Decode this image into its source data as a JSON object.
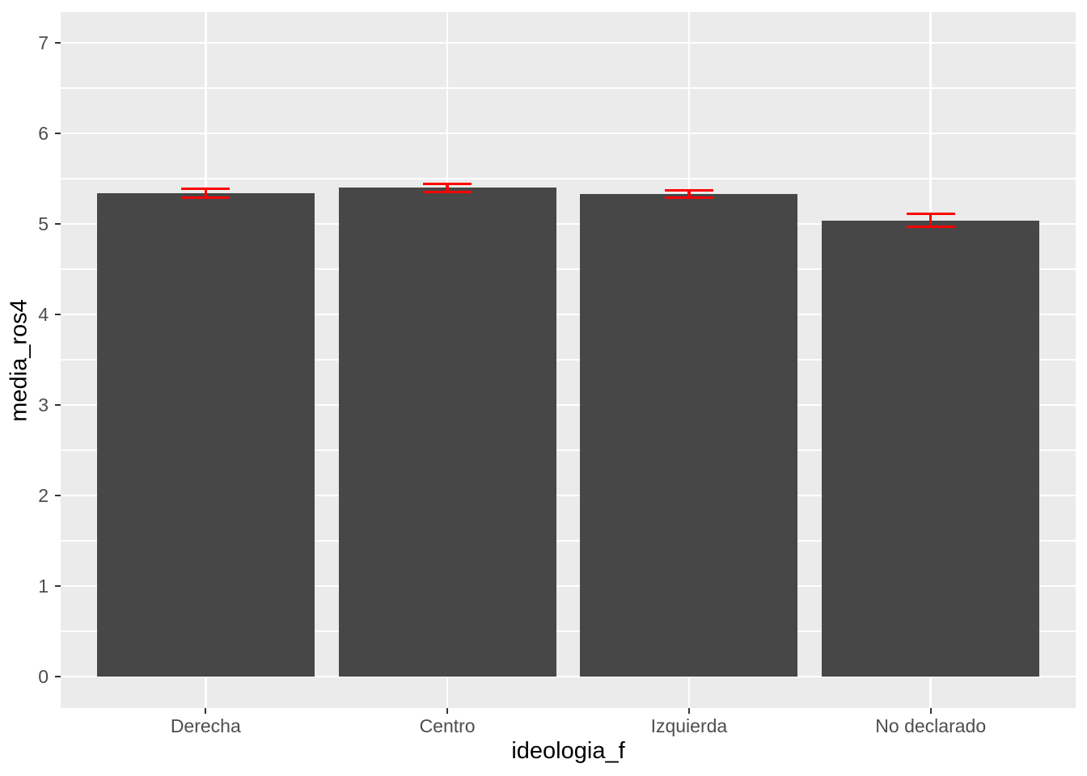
{
  "chart_data": {
    "type": "bar",
    "title": "",
    "xlabel": "ideologia_f",
    "ylabel": "media_ros4",
    "categories": [
      "Derecha",
      "Centro",
      "Izquierda",
      "No declarado"
    ],
    "series": [
      {
        "name": "media_ros4",
        "values": [
          5.34,
          5.4,
          5.33,
          5.04
        ]
      }
    ],
    "error_bars": {
      "low": [
        5.29,
        5.35,
        5.29,
        4.97
      ],
      "high": [
        5.39,
        5.44,
        5.37,
        5.11
      ]
    },
    "y_ticks": [
      0,
      1,
      2,
      3,
      4,
      5,
      6,
      7
    ],
    "ylim": [
      -0.36,
      7.34
    ],
    "grid": "major-and-minor horizontal, major vertical at categories",
    "legend": "none",
    "colors": {
      "bar_fill": "#474747",
      "error_bar": "#FF0000",
      "panel_background": "#EBEBEB",
      "gridline": "#FFFFFF",
      "tick_text": "#4D4D4D",
      "axis_title_text": "#000000",
      "tick_mark": "#333333",
      "figure_background": "#FFFFFF"
    }
  }
}
